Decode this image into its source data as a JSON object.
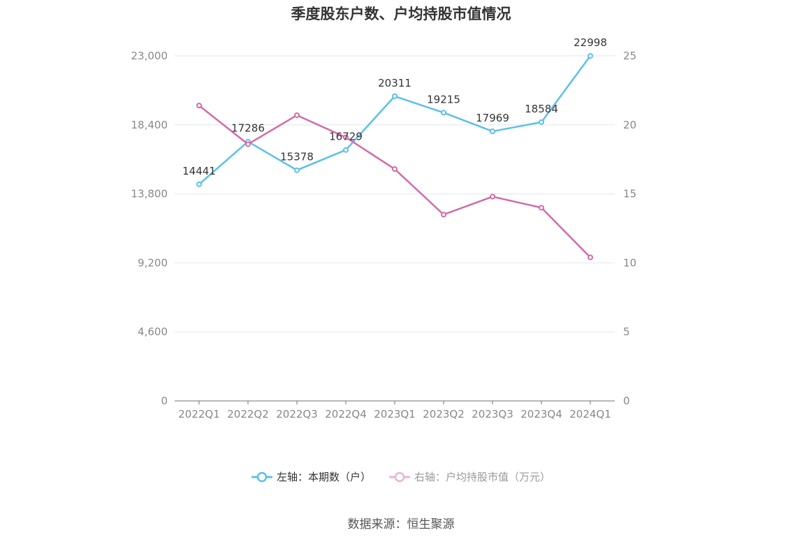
{
  "chart_data": {
    "type": "line",
    "title": "季度股东户数、户均持股市值情况",
    "categories": [
      "2022Q1",
      "2022Q2",
      "2022Q3",
      "2022Q4",
      "2023Q1",
      "2023Q2",
      "2023Q3",
      "2023Q4",
      "2024Q1"
    ],
    "series": [
      {
        "name": "左轴：本期数（户）",
        "axis": "left",
        "color": "#5bc0eb",
        "values": [
          14441,
          17286,
          15378,
          16729,
          20311,
          19215,
          17969,
          18584,
          22998
        ],
        "labels": [
          "14441",
          "17286",
          "15378",
          "16729",
          "20311",
          "19215",
          "17969",
          "18584",
          "22998"
        ]
      },
      {
        "name": "右轴：户均持股市值（万元）",
        "axis": "right",
        "color": "#d46aa8",
        "values": [
          21.4,
          18.6,
          20.7,
          19.1,
          16.8,
          13.5,
          14.8,
          14.0,
          10.4
        ]
      }
    ],
    "y_left": {
      "min": 0,
      "max": 23000,
      "ticks": [
        "0",
        "4,600",
        "9,200",
        "13,800",
        "18,400",
        "23,000"
      ],
      "tick_values": [
        0,
        4600,
        9200,
        13800,
        18400,
        23000
      ]
    },
    "y_right": {
      "min": 0,
      "max": 25,
      "ticks": [
        "0",
        "5",
        "10",
        "15",
        "20",
        "25"
      ],
      "tick_values": [
        0,
        5,
        10,
        15,
        20,
        25
      ]
    },
    "grid": true,
    "legend_position": "bottom"
  },
  "source": "数据来源：恒生聚源"
}
